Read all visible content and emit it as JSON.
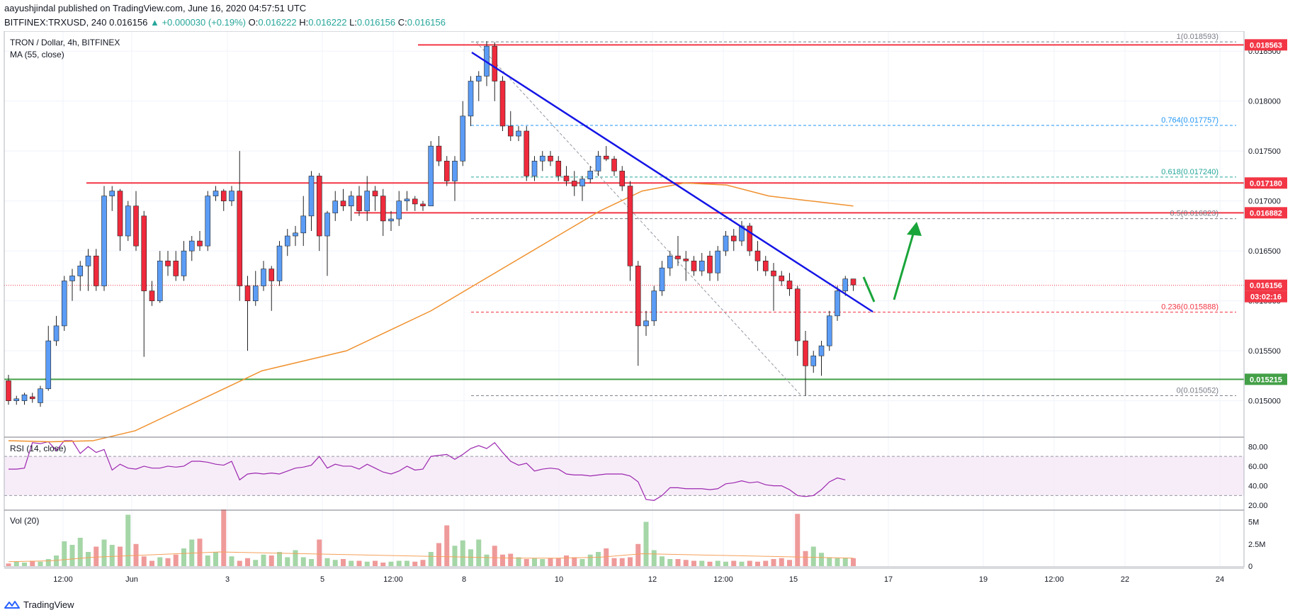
{
  "header": {
    "publisher_line": "aayushjindal published on TradingView.com, June 16, 2020 04:57:51 UTC",
    "symbol": "BITFINEX:TRXUSD, 240",
    "last": "0.016156",
    "change": "▲ +0.000030 (+0.19%)",
    "o_label": "O:",
    "o": "0.016222",
    "h_label": "H:",
    "h": "0.016222",
    "l_label": "L:",
    "l": "0.016156",
    "c_label": "C:",
    "c": "0.016156"
  },
  "legend": {
    "title": "TRON / Dollar, 4h, BITFINEX",
    "ma": "MA (55, close)",
    "rsi": "RSI (14, close)",
    "vol": "Vol (20)"
  },
  "footer": {
    "brand": "TradingView"
  },
  "colors": {
    "up": "#5b9cf6",
    "down": "#ef2a3c",
    "ma": "#f0912e",
    "trendline": "#1515e6",
    "resistance": "#f23645",
    "support": "#43a047",
    "rsi": "#9c27b0",
    "arrow": "#1aa53a"
  },
  "chart_data": {
    "type": "candlestick",
    "timeframe": "4h",
    "x_tick_labels": [
      "12:00",
      "Jun",
      "3",
      "5",
      "12:00",
      "8",
      "10",
      "12",
      "12:00",
      "15",
      "17",
      "19",
      "12:00",
      "22",
      "24"
    ],
    "price_axis_labels": [
      "0.015000",
      "0.015500",
      "0.016000",
      "0.016500",
      "0.017000",
      "0.017500",
      "0.018000",
      "0.018500"
    ],
    "price_axis_range": [
      0.01465,
      0.0187
    ],
    "ohlc": [
      [
        0.0152,
        0.01526,
        0.01496,
        0.015
      ],
      [
        0.015,
        0.01505,
        0.01496,
        0.01502
      ],
      [
        0.015,
        0.01508,
        0.01496,
        0.01506
      ],
      [
        0.01504,
        0.01508,
        0.01498,
        0.01502
      ],
      [
        0.01498,
        0.01515,
        0.01494,
        0.01512
      ],
      [
        0.01512,
        0.01575,
        0.0151,
        0.0156
      ],
      [
        0.0156,
        0.01585,
        0.01555,
        0.01575
      ],
      [
        0.01575,
        0.01625,
        0.0157,
        0.0162
      ],
      [
        0.0162,
        0.01632,
        0.016,
        0.01625
      ],
      [
        0.01625,
        0.0164,
        0.0161,
        0.01635
      ],
      [
        0.01635,
        0.01652,
        0.0161,
        0.01645
      ],
      [
        0.01645,
        0.01652,
        0.0161,
        0.01615
      ],
      [
        0.01615,
        0.01715,
        0.0161,
        0.01705
      ],
      [
        0.01705,
        0.01715,
        0.0169,
        0.0171
      ],
      [
        0.0171,
        0.01712,
        0.0165,
        0.01665
      ],
      [
        0.01665,
        0.017,
        0.0166,
        0.01695
      ],
      [
        0.01695,
        0.0171,
        0.0165,
        0.01655
      ],
      [
        0.01685,
        0.0169,
        0.01544,
        0.0161
      ],
      [
        0.0161,
        0.0162,
        0.01595,
        0.016
      ],
      [
        0.016,
        0.0165,
        0.01598,
        0.0164
      ],
      [
        0.0164,
        0.0165,
        0.01625,
        0.01635
      ],
      [
        0.0164,
        0.0165,
        0.0162,
        0.01625
      ],
      [
        0.01625,
        0.0166,
        0.0162,
        0.0165
      ],
      [
        0.0165,
        0.01665,
        0.0164,
        0.0166
      ],
      [
        0.0166,
        0.0167,
        0.0165,
        0.01655
      ],
      [
        0.01655,
        0.0171,
        0.0165,
        0.01705
      ],
      [
        0.01705,
        0.01715,
        0.017,
        0.0171
      ],
      [
        0.0171,
        0.01712,
        0.0169,
        0.017
      ],
      [
        0.017,
        0.01715,
        0.01695,
        0.0171
      ],
      [
        0.0171,
        0.0175,
        0.016,
        0.01615
      ],
      [
        0.01615,
        0.01625,
        0.0155,
        0.016
      ],
      [
        0.016,
        0.0163,
        0.01595,
        0.01615
      ],
      [
        0.01615,
        0.0164,
        0.0161,
        0.01632
      ],
      [
        0.01632,
        0.01635,
        0.0159,
        0.0162
      ],
      [
        0.0162,
        0.0166,
        0.01615,
        0.01655
      ],
      [
        0.01655,
        0.01672,
        0.01645,
        0.01665
      ],
      [
        0.01665,
        0.01675,
        0.01655,
        0.01668
      ],
      [
        0.01668,
        0.01705,
        0.01655,
        0.01685
      ],
      [
        0.01685,
        0.0173,
        0.0167,
        0.01725
      ],
      [
        0.01725,
        0.01728,
        0.0165,
        0.01665
      ],
      [
        0.01665,
        0.0169,
        0.01625,
        0.01688
      ],
      [
        0.01688,
        0.0171,
        0.0168,
        0.017
      ],
      [
        0.017,
        0.01712,
        0.0169,
        0.01695
      ],
      [
        0.01695,
        0.0171,
        0.0168,
        0.01705
      ],
      [
        0.01705,
        0.01715,
        0.01685,
        0.0169
      ],
      [
        0.0169,
        0.01725,
        0.0168,
        0.0171
      ],
      [
        0.0171,
        0.01715,
        0.0169,
        0.01705
      ],
      [
        0.01705,
        0.01712,
        0.01665,
        0.0168
      ],
      [
        0.0168,
        0.0169,
        0.0167,
        0.01682
      ],
      [
        0.01682,
        0.0171,
        0.01675,
        0.017
      ],
      [
        0.017,
        0.0171,
        0.0169,
        0.01702
      ],
      [
        0.01702,
        0.01705,
        0.0169,
        0.01697
      ],
      [
        0.01697,
        0.017,
        0.0169,
        0.01695
      ],
      [
        0.01695,
        0.0176,
        0.01695,
        0.01755
      ],
      [
        0.01755,
        0.01765,
        0.01735,
        0.0174
      ],
      [
        0.0174,
        0.01745,
        0.01715,
        0.0172
      ],
      [
        0.0172,
        0.01745,
        0.017,
        0.0174
      ],
      [
        0.0174,
        0.018,
        0.01735,
        0.01785
      ],
      [
        0.01785,
        0.01825,
        0.01775,
        0.0182
      ],
      [
        0.0182,
        0.0183,
        0.018,
        0.01825
      ],
      [
        0.01825,
        0.0186,
        0.01815,
        0.01855
      ],
      [
        0.01855,
        0.01859,
        0.018,
        0.0182
      ],
      [
        0.0182,
        0.01825,
        0.0177,
        0.01775
      ],
      [
        0.01775,
        0.0179,
        0.0176,
        0.01765
      ],
      [
        0.01765,
        0.01775,
        0.0176,
        0.0177
      ],
      [
        0.0177,
        0.01775,
        0.0172,
        0.01725
      ],
      [
        0.01725,
        0.01745,
        0.0172,
        0.0174
      ],
      [
        0.0174,
        0.0175,
        0.0173,
        0.01745
      ],
      [
        0.01745,
        0.0175,
        0.01735,
        0.0174
      ],
      [
        0.0174,
        0.01745,
        0.0172,
        0.01725
      ],
      [
        0.01725,
        0.01735,
        0.01715,
        0.0172
      ],
      [
        0.0172,
        0.0173,
        0.01705,
        0.01715
      ],
      [
        0.01715,
        0.01725,
        0.017,
        0.01722
      ],
      [
        0.01722,
        0.01735,
        0.01718,
        0.0173
      ],
      [
        0.0173,
        0.0175,
        0.01725,
        0.01745
      ],
      [
        0.01745,
        0.01755,
        0.0174,
        0.01742
      ],
      [
        0.01742,
        0.01745,
        0.01725,
        0.0173
      ],
      [
        0.0173,
        0.01735,
        0.0171,
        0.01715
      ],
      [
        0.01715,
        0.0172,
        0.0162,
        0.01635
      ],
      [
        0.01635,
        0.0164,
        0.01535,
        0.01575
      ],
      [
        0.01575,
        0.0159,
        0.01565,
        0.0158
      ],
      [
        0.0158,
        0.01615,
        0.01575,
        0.0161
      ],
      [
        0.0161,
        0.0164,
        0.01605,
        0.01633
      ],
      [
        0.01633,
        0.0165,
        0.01625,
        0.01645
      ],
      [
        0.01645,
        0.01665,
        0.01635,
        0.01642
      ],
      [
        0.01642,
        0.0165,
        0.0162,
        0.0164
      ],
      [
        0.0164,
        0.01645,
        0.01625,
        0.0163
      ],
      [
        0.0163,
        0.01648,
        0.01625,
        0.0164
      ],
      [
        0.01645,
        0.0165,
        0.0162,
        0.01628
      ],
      [
        0.01628,
        0.01655,
        0.0162,
        0.0165
      ],
      [
        0.0165,
        0.0167,
        0.01645,
        0.01665
      ],
      [
        0.01665,
        0.01672,
        0.0165,
        0.0166
      ],
      [
        0.0166,
        0.0168,
        0.01655,
        0.01675
      ],
      [
        0.01675,
        0.01678,
        0.01645,
        0.0165
      ],
      [
        0.0165,
        0.0166,
        0.0163,
        0.0164
      ],
      [
        0.0164,
        0.01645,
        0.01625,
        0.0163
      ],
      [
        0.0163,
        0.01638,
        0.0159,
        0.01625
      ],
      [
        0.01625,
        0.0163,
        0.01615,
        0.0162
      ],
      [
        0.0162,
        0.01628,
        0.01605,
        0.01612
      ],
      [
        0.01612,
        0.01615,
        0.01545,
        0.0156
      ],
      [
        0.0156,
        0.0157,
        0.01505,
        0.01535
      ],
      [
        0.01535,
        0.0155,
        0.01528,
        0.01545
      ],
      [
        0.01545,
        0.0156,
        0.01525,
        0.01555
      ],
      [
        0.01555,
        0.0159,
        0.0155,
        0.01585
      ],
      [
        0.01585,
        0.01615,
        0.0158,
        0.0161
      ],
      [
        0.0161,
        0.01625,
        0.01605,
        0.01622
      ],
      [
        0.01622,
        0.01622,
        0.0161,
        0.01616
      ]
    ],
    "ma55": [
      0.0146,
      0.01459,
      0.0146,
      0.0147,
      0.0149,
      0.0151,
      0.0153,
      0.0154,
      0.0155,
      0.0157,
      0.0159,
      0.01615,
      0.0164,
      0.01665,
      0.0169,
      0.0171,
      0.01718,
      0.01716,
      0.01705,
      0.017,
      0.01695
    ],
    "horizontal_levels": {
      "resistance_1": 0.018563,
      "resistance_2": 0.01718,
      "resistance_3": 0.016882,
      "current_price": 0.016156,
      "support": 0.015215
    },
    "price_tags": [
      "0.018563",
      "0.017180",
      "0.016882",
      "0.016156",
      "03:02:16",
      "0.015215"
    ],
    "fibonacci": [
      {
        "label": "1(0.018593)",
        "price": 0.018593,
        "color": "#787b86"
      },
      {
        "label": "0.764(0.017757)",
        "price": 0.017757,
        "color": "#2196f3"
      },
      {
        "label": "0.618(0.017240)",
        "price": 0.01724,
        "color": "#26a69a"
      },
      {
        "label": "0.5(0.016823)",
        "price": 0.016823,
        "color": "#787b86"
      },
      {
        "label": "0.236(0.015888)",
        "price": 0.015888,
        "color": "#f23645"
      },
      {
        "label": "0(0.015052)",
        "price": 0.015052,
        "color": "#787b86"
      }
    ],
    "rsi": {
      "axis_labels": [
        "80.00",
        "60.00",
        "40.00",
        "20.00"
      ],
      "range": [
        18,
        86
      ],
      "band": [
        30,
        70
      ],
      "values": [
        57,
        57,
        58,
        84,
        83,
        85,
        76,
        86,
        86,
        73,
        80,
        74,
        77,
        56,
        62,
        58,
        57,
        60,
        58,
        58,
        60,
        59,
        60,
        65,
        65,
        64,
        62,
        61,
        65,
        46,
        52,
        53,
        52,
        53,
        52,
        55,
        58,
        59,
        61,
        70,
        58,
        62,
        60,
        60,
        57,
        62,
        58,
        54,
        52,
        55,
        60,
        56,
        57,
        70,
        71,
        72,
        67,
        72,
        78,
        81,
        78,
        84,
        74,
        65,
        61,
        63,
        55,
        57,
        58,
        57,
        52,
        51,
        51,
        50,
        51,
        52,
        52,
        52,
        50,
        44,
        26,
        25,
        30,
        38,
        38,
        37,
        37,
        37,
        36,
        37,
        42,
        43,
        45,
        43,
        44,
        41,
        40,
        40,
        36,
        30,
        29,
        30,
        36,
        44,
        48,
        46
      ]
    },
    "volume": {
      "axis_labels": [
        "5M",
        "2.5M",
        "0"
      ],
      "max": 6000000,
      "values": [
        0.3,
        0.5,
        0.4,
        0.6,
        0.5,
        0.8,
        1.2,
        2.8,
        2.4,
        3.2,
        1.6,
        2.2,
        3.0,
        2.4,
        2.2,
        5.8,
        2.5,
        1.1,
        0.6,
        1.0,
        0.9,
        1.3,
        2.0,
        3.0,
        3.1,
        1.2,
        1.6,
        6.4,
        1.1,
        0.6,
        0.9,
        0.7,
        1.3,
        1.2,
        1.6,
        1.0,
        1.8,
        1.0,
        0.8,
        3.0,
        0.9,
        0.7,
        0.8,
        0.6,
        0.6,
        0.5,
        0.6,
        0.4,
        0.5,
        0.6,
        0.6,
        0.5,
        0.7,
        1.6,
        2.6,
        4.6,
        2.3,
        2.9,
        1.9,
        3.0,
        1.3,
        2.3,
        1.3,
        1.4,
        1.0,
        0.8,
        0.9,
        0.8,
        0.9,
        0.9,
        1.2,
        1.0,
        0.8,
        1.3,
        1.6,
        2.0,
        0.9,
        0.9,
        1.0,
        2.5,
        5.0,
        1.8,
        1.1,
        0.8,
        0.8,
        0.7,
        0.6,
        0.6,
        0.5,
        0.6,
        0.5,
        0.6,
        0.5,
        0.6,
        0.5,
        0.6,
        0.8,
        0.9,
        0.7,
        5.9,
        1.7,
        2.2,
        1.5,
        1.0,
        0.9,
        0.9,
        0.9
      ]
    },
    "ma_volume": [
      0.5,
      0.6,
      1.0,
      1.2,
      1.4,
      1.6,
      1.5,
      1.4,
      1.3,
      1.2,
      1.1,
      1.0,
      0.9,
      0.9,
      1.0,
      1.4,
      1.3,
      1.2,
      1.1,
      1.0,
      0.9
    ]
  }
}
